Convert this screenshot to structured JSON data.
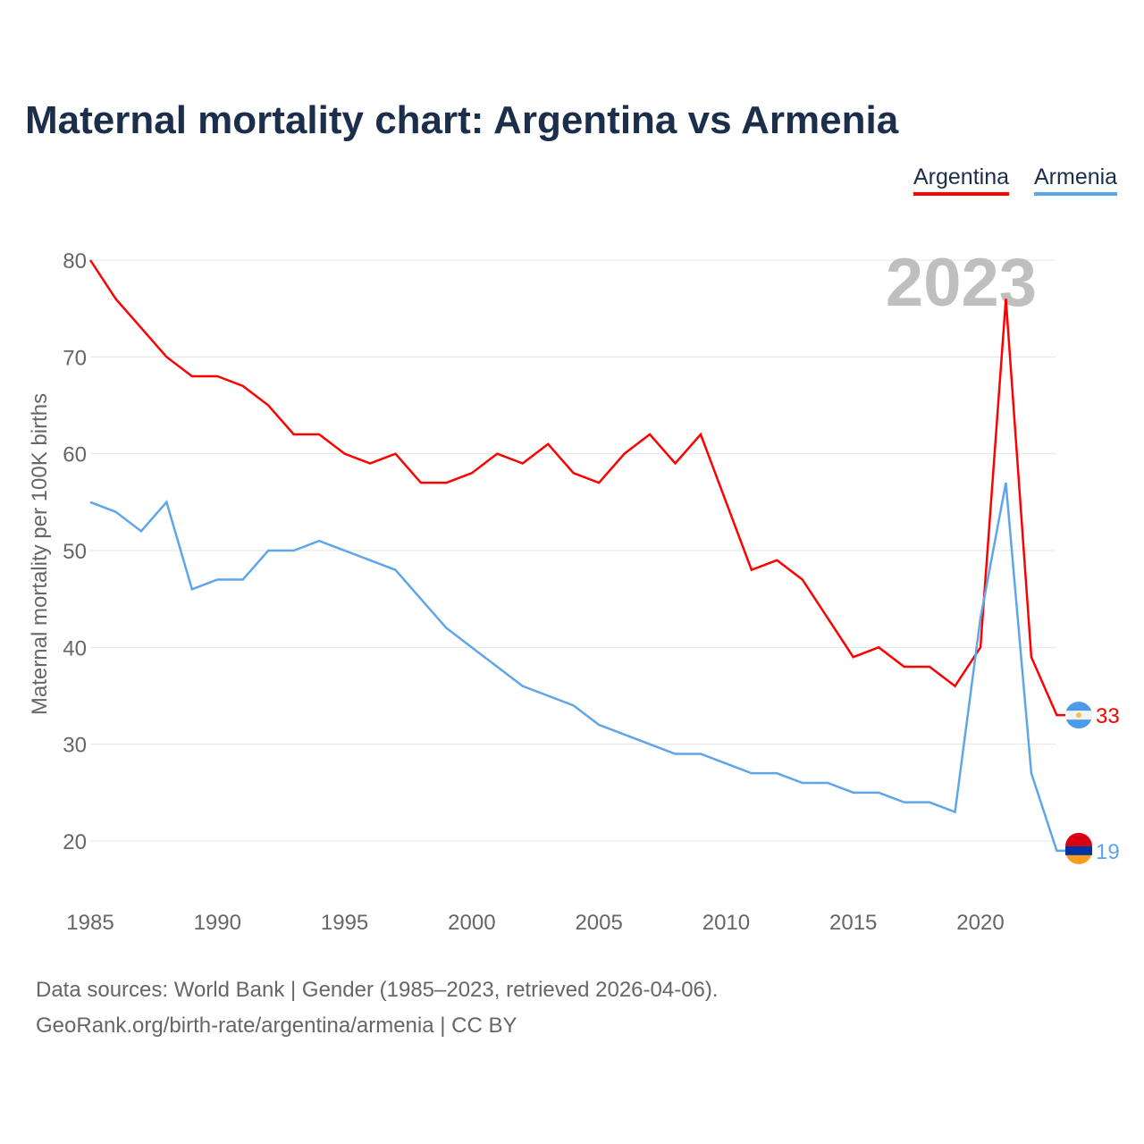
{
  "title": "Maternal mortality chart: Argentina vs Armenia",
  "chart_data": {
    "type": "line",
    "title": "Maternal mortality chart: Argentina vs Armenia",
    "ylabel": "Maternal mortality per 100K births",
    "xlabel": "",
    "year_label": "2023",
    "ylim": [
      15,
      82
    ],
    "xlim": [
      1985,
      2023
    ],
    "yticks": [
      20,
      30,
      40,
      50,
      60,
      70,
      80
    ],
    "xticks": [
      1985,
      1990,
      1995,
      2000,
      2005,
      2010,
      2015,
      2020
    ],
    "grid": true,
    "legend_position": "top-right",
    "x": [
      1985,
      1986,
      1987,
      1988,
      1989,
      1990,
      1991,
      1992,
      1993,
      1994,
      1995,
      1996,
      1997,
      1998,
      1999,
      2000,
      2001,
      2002,
      2003,
      2004,
      2005,
      2006,
      2007,
      2008,
      2009,
      2010,
      2011,
      2012,
      2013,
      2014,
      2015,
      2016,
      2017,
      2018,
      2019,
      2020,
      2021,
      2022,
      2023
    ],
    "series": [
      {
        "name": "Argentina",
        "color": "#ff0000",
        "end_label": "33",
        "values": [
          80,
          76,
          73,
          70,
          68,
          68,
          67,
          65,
          62,
          62,
          60,
          59,
          60,
          57,
          57,
          58,
          60,
          59,
          61,
          58,
          57,
          60,
          62,
          59,
          62,
          55,
          48,
          49,
          47,
          43,
          39,
          40,
          38,
          38,
          36,
          40,
          76,
          39,
          33
        ]
      },
      {
        "name": "Armenia",
        "color": "#5ea5ea",
        "end_label": "19",
        "values": [
          55,
          54,
          52,
          55,
          46,
          47,
          47,
          50,
          50,
          51,
          50,
          49,
          48,
          45,
          42,
          40,
          38,
          36,
          35,
          34,
          32,
          31,
          30,
          29,
          29,
          28,
          27,
          27,
          26,
          26,
          25,
          25,
          24,
          24,
          23,
          43,
          57,
          27,
          19
        ]
      }
    ]
  },
  "source_line1": "Data sources: World Bank | Gender (1985–2023, retrieved 2026-04-06).",
  "source_line2": "GeoRank.org/birth-rate/argentina/armenia | CC BY"
}
